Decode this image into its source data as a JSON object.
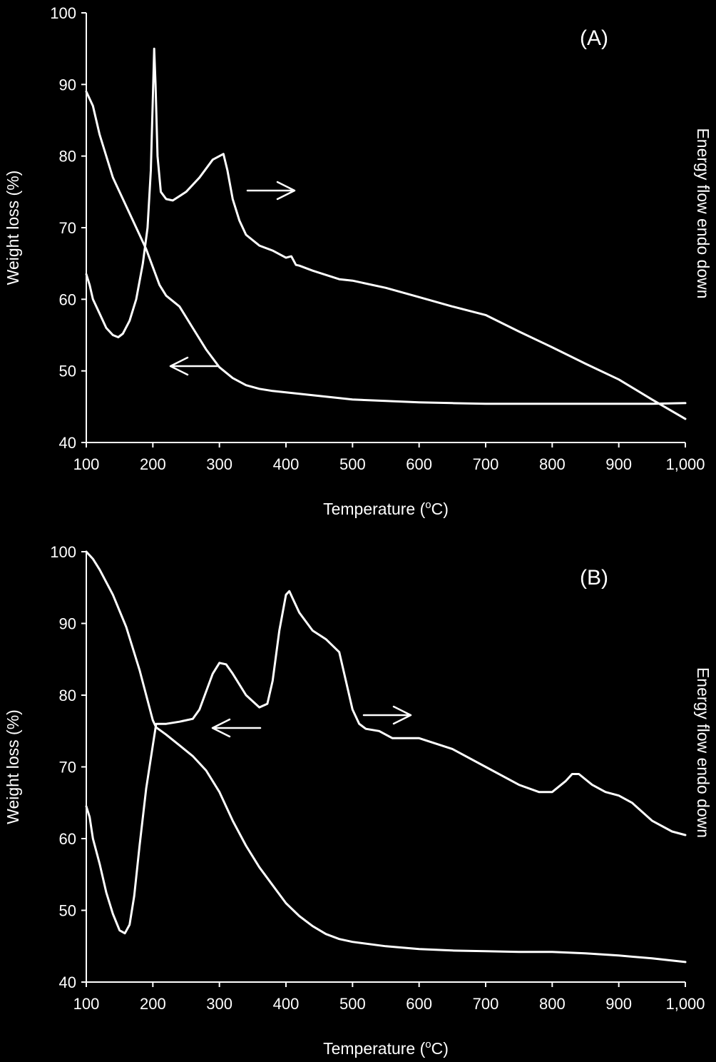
{
  "chart_data": [
    {
      "type": "line",
      "panel_label": "(A)",
      "xlabel": "Temperature (",
      "xlabel_sup": "o",
      "xlabel_suffix": "C)",
      "ylabel": "Weight loss (%)",
      "y2label": "Energy flow endo down",
      "xlim": [
        100,
        1000
      ],
      "ylim": [
        40,
        100
      ],
      "x_ticks": [
        "100",
        "200",
        "300",
        "400",
        "500",
        "600",
        "700",
        "800",
        "900",
        "1,000"
      ],
      "y_ticks": [
        "40",
        "50",
        "60",
        "70",
        "80",
        "90",
        "100"
      ],
      "grid": false,
      "series": [
        {
          "role": "weight loss (left axis)",
          "arrow": "left",
          "x": [
            100,
            110,
            120,
            140,
            160,
            180,
            190,
            200,
            210,
            220,
            240,
            260,
            280,
            300,
            320,
            340,
            360,
            380,
            400,
            450,
            500,
            550,
            600,
            650,
            700,
            750,
            800,
            850,
            900,
            950,
            1000
          ],
          "y": [
            89,
            87,
            83,
            77,
            73,
            69,
            67,
            64.5,
            62,
            60.5,
            59,
            56,
            53,
            50.5,
            49,
            48,
            47.5,
            47.2,
            47,
            46.5,
            46,
            45.8,
            45.6,
            45.5,
            45.4,
            45.4,
            45.4,
            45.4,
            45.4,
            45.4,
            45.5
          ]
        },
        {
          "role": "energy flow (right axis)",
          "arrow": "right",
          "x": [
            100,
            105,
            110,
            120,
            130,
            140,
            148,
            155,
            165,
            175,
            185,
            192,
            197,
            200,
            202,
            204,
            207,
            212,
            220,
            230,
            250,
            270,
            290,
            300,
            306,
            312,
            320,
            330,
            340,
            360,
            380,
            400,
            408,
            415,
            420,
            440,
            460,
            480,
            500,
            550,
            600,
            650,
            700,
            750,
            800,
            850,
            900,
            950,
            1000
          ],
          "y": [
            63.5,
            62,
            60,
            58,
            56,
            55,
            54.7,
            55.2,
            57,
            60,
            65,
            70,
            78,
            88,
            95,
            90,
            80,
            75,
            74,
            73.8,
            75,
            77,
            79.5,
            80,
            80.3,
            78,
            74,
            71,
            69,
            67.5,
            66.8,
            65.8,
            66,
            64.8,
            64.7,
            64,
            63.4,
            62.8,
            62.6,
            61.6,
            60.3,
            59,
            57.8,
            55.5,
            53.3,
            51,
            48.8,
            46,
            43.3
          ]
        }
      ]
    },
    {
      "type": "line",
      "panel_label": "(B)",
      "xlabel": "Temperature (",
      "xlabel_sup": "o",
      "xlabel_suffix": "C)",
      "ylabel": "Weight loss (%)",
      "y2label": "Energy flow endo down",
      "xlim": [
        100,
        1000
      ],
      "ylim": [
        40,
        100
      ],
      "x_ticks": [
        "100",
        "200",
        "300",
        "400",
        "500",
        "600",
        "700",
        "800",
        "900",
        "1,000"
      ],
      "y_ticks": [
        "40",
        "50",
        "60",
        "70",
        "80",
        "90",
        "100"
      ],
      "grid": false,
      "series": [
        {
          "role": "weight loss (left axis)",
          "arrow": "left",
          "x": [
            100,
            110,
            120,
            140,
            160,
            180,
            200,
            205,
            220,
            240,
            260,
            280,
            300,
            320,
            340,
            360,
            380,
            400,
            420,
            440,
            460,
            480,
            500,
            550,
            600,
            650,
            700,
            750,
            800,
            850,
            900,
            950,
            1000
          ],
          "y": [
            100,
            99,
            97.5,
            94,
            89.5,
            83.5,
            76.5,
            75.5,
            74.5,
            73,
            71.5,
            69.5,
            66.5,
            62.5,
            59,
            56,
            53.5,
            51,
            49.2,
            47.8,
            46.7,
            46,
            45.6,
            45,
            44.6,
            44.4,
            44.3,
            44.2,
            44.2,
            44,
            43.7,
            43.3,
            42.8
          ]
        },
        {
          "role": "energy flow (right axis)",
          "arrow": "right",
          "x": [
            100,
            105,
            110,
            120,
            130,
            140,
            150,
            158,
            165,
            172,
            180,
            190,
            200,
            205,
            210,
            220,
            240,
            260,
            270,
            280,
            290,
            300,
            310,
            320,
            340,
            360,
            372,
            380,
            390,
            400,
            405,
            410,
            420,
            440,
            460,
            480,
            490,
            500,
            510,
            520,
            540,
            560,
            600,
            650,
            700,
            750,
            780,
            800,
            820,
            830,
            840,
            860,
            880,
            900,
            920,
            950,
            980,
            1000
          ],
          "y": [
            64.5,
            63,
            60,
            56.5,
            52.5,
            49.5,
            47.2,
            46.8,
            48,
            52,
            59,
            67,
            73,
            76,
            76,
            76,
            76.3,
            76.7,
            78,
            80.5,
            83,
            84.5,
            84.3,
            83,
            80,
            78.3,
            78.8,
            82,
            89,
            94,
            94.5,
            93.5,
            91.5,
            89,
            87.8,
            86,
            82,
            78,
            76,
            75.3,
            75,
            74,
            74,
            72.5,
            70,
            67.5,
            66.5,
            66.5,
            68,
            69,
            69,
            67.5,
            66.5,
            66,
            65,
            62.5,
            61,
            60.5
          ]
        }
      ]
    }
  ]
}
